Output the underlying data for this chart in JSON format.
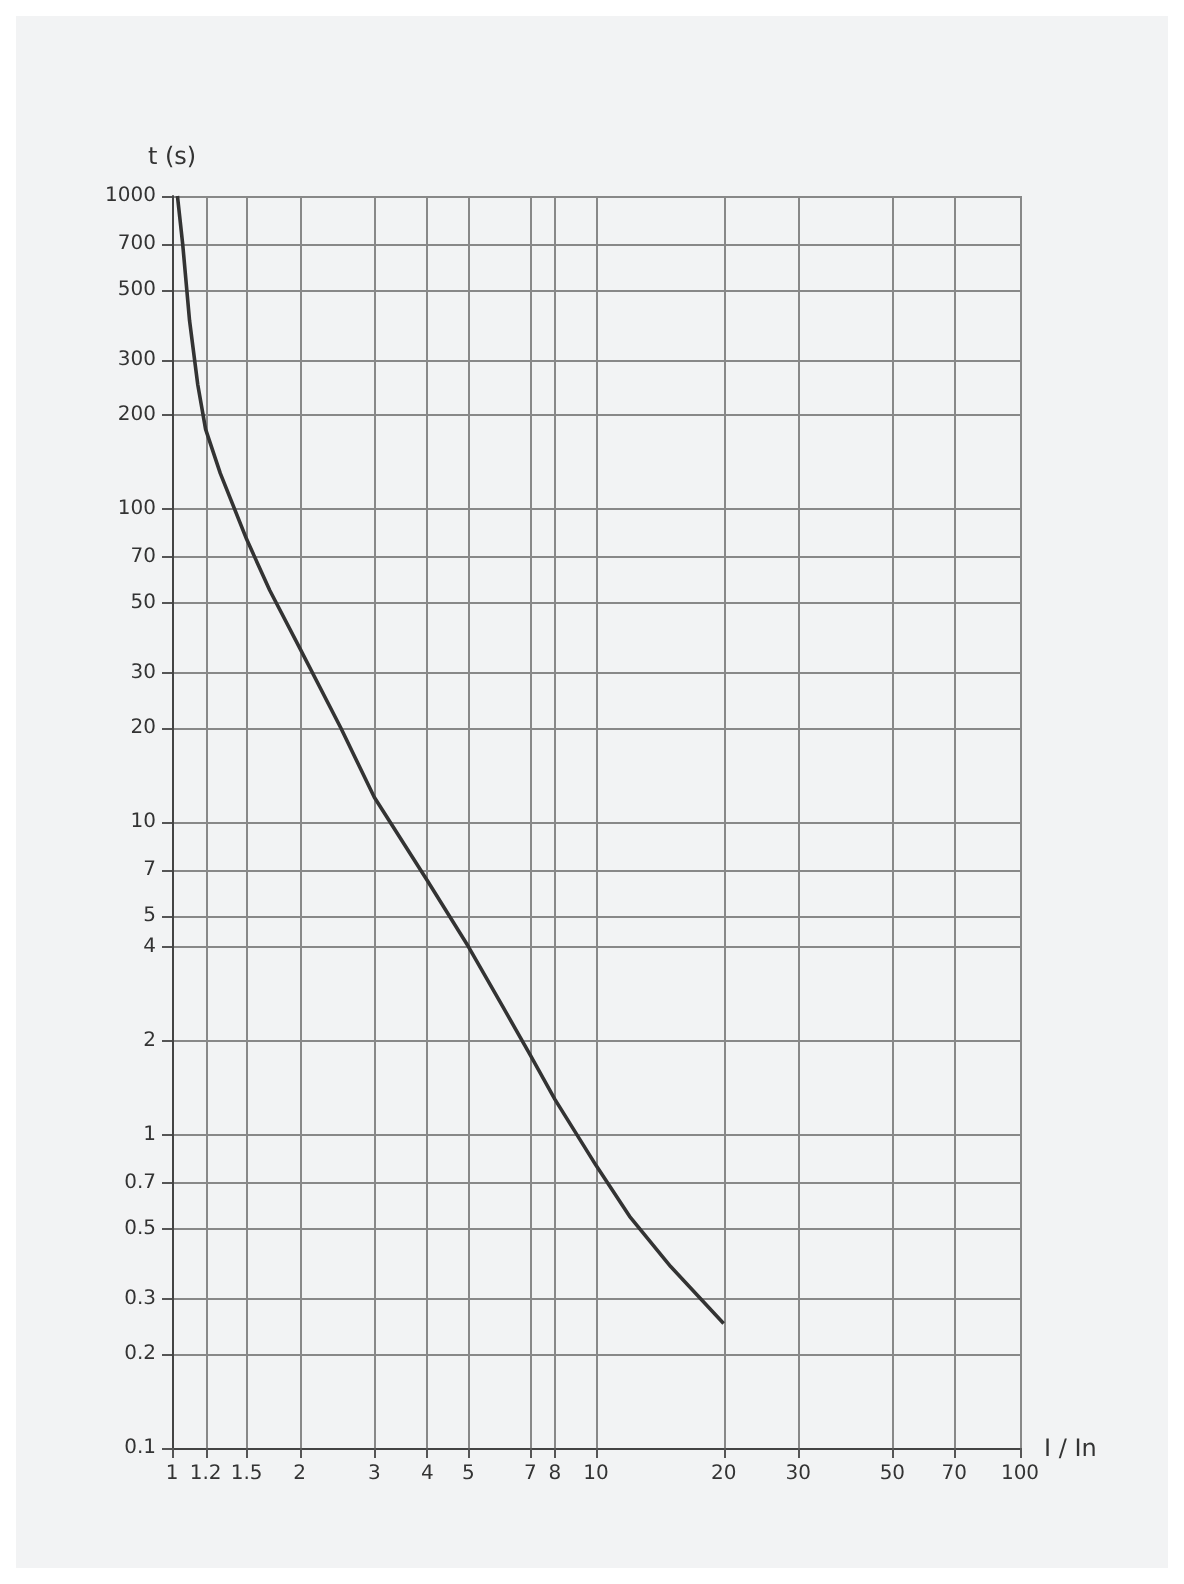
{
  "chart_data": {
    "type": "line",
    "ylabel": "t (s)",
    "xlabel": "I / In",
    "log": "xy",
    "grid": true,
    "marker": "none",
    "line_style": "solid",
    "xlim": [
      1,
      100
    ],
    "xticks": [
      1,
      1.2,
      1.5,
      2,
      3,
      4,
      5,
      7,
      8,
      10,
      20,
      30,
      50,
      70,
      100
    ],
    "ylim": [
      0.1,
      1000
    ],
    "yticks": [
      0.1,
      0.2,
      0.3,
      0.5,
      0.7,
      1,
      2,
      4,
      5,
      7,
      10,
      20,
      30,
      50,
      70,
      100,
      200,
      300,
      500,
      700,
      1000
    ],
    "series": [
      {
        "color": "#333333",
        "x": [
          1.03,
          1.06,
          1.1,
          1.15,
          1.2,
          1.3,
          1.5,
          1.7,
          2,
          2.5,
          3,
          4,
          5,
          6,
          7,
          8,
          10,
          12,
          15,
          20
        ],
        "values": [
          1000,
          700,
          400,
          250,
          180,
          130,
          80,
          55,
          36,
          20,
          12,
          6.5,
          4,
          2.6,
          1.8,
          1.3,
          0.8,
          0.55,
          0.38,
          0.25
        ]
      }
    ]
  }
}
